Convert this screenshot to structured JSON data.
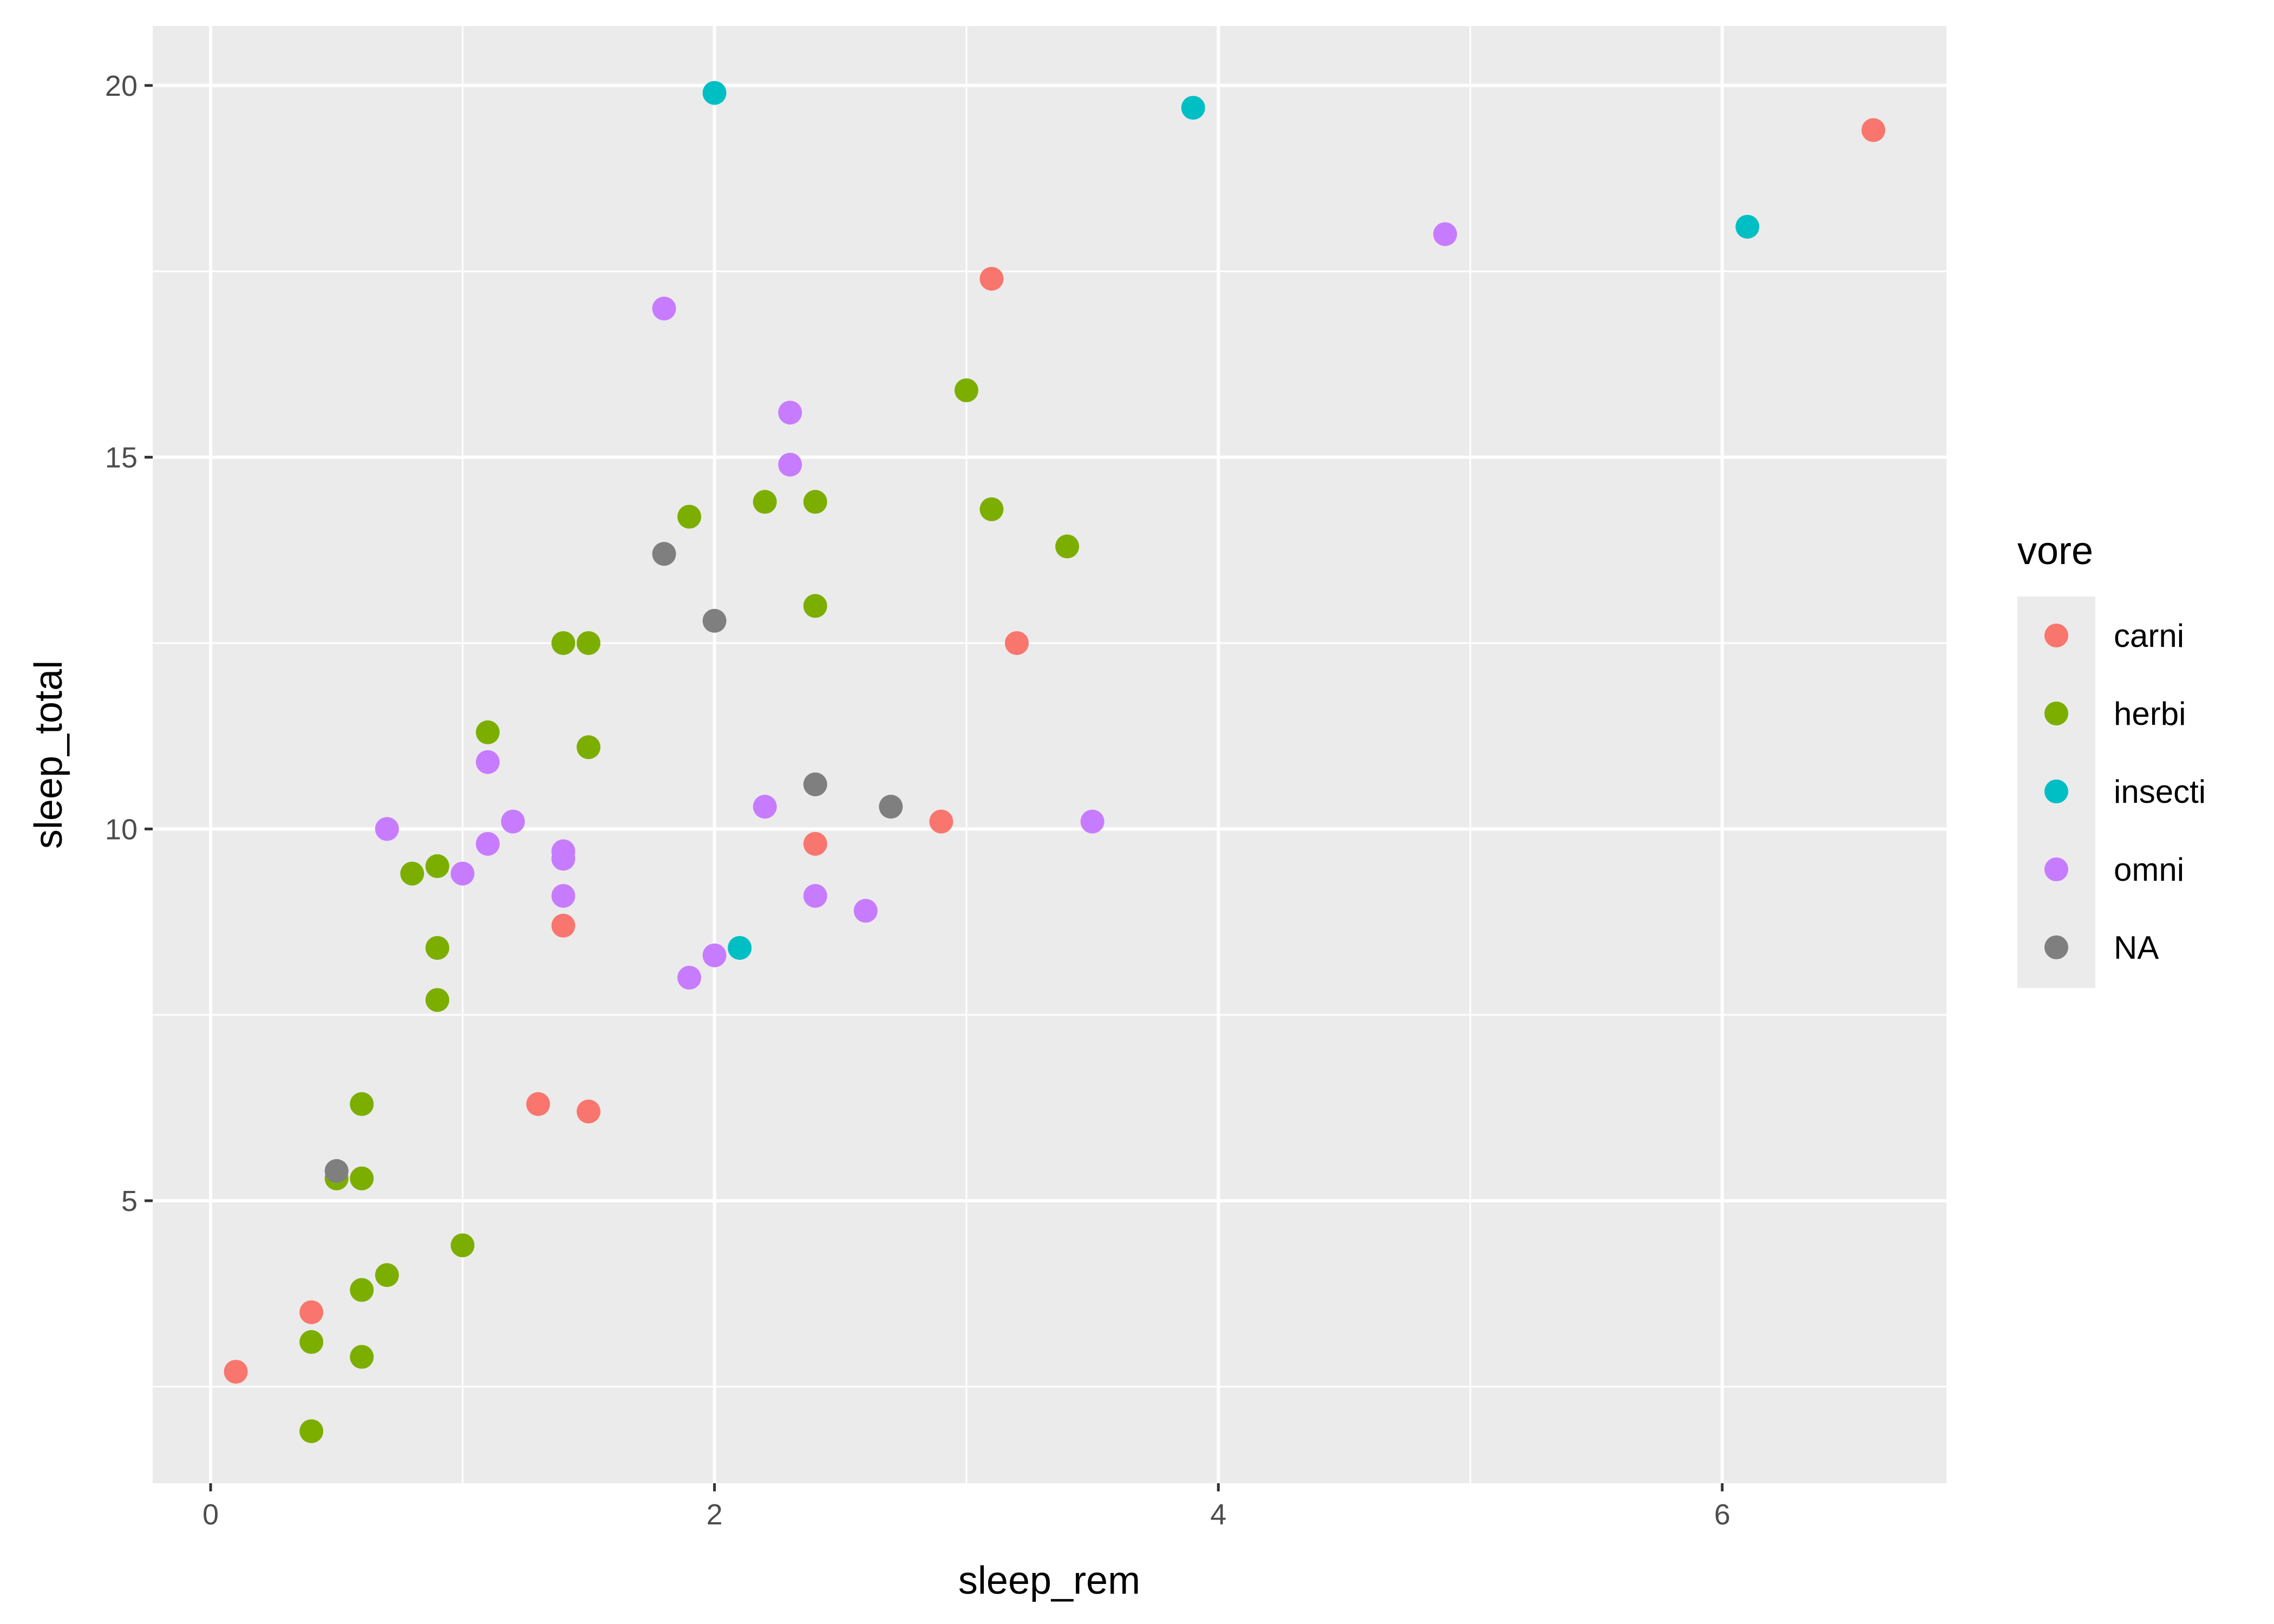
{
  "chart_data": {
    "type": "scatter",
    "xlabel": "sleep_rem",
    "ylabel": "sleep_total",
    "xlim": [
      -0.23,
      6.89
    ],
    "ylim": [
      1.2,
      20.8
    ],
    "x_ticks": [
      0,
      2,
      4,
      6
    ],
    "y_ticks": [
      5,
      10,
      15,
      20
    ],
    "x_tick_labels": [
      "0",
      "2",
      "4",
      "6"
    ],
    "y_tick_labels": [
      "5",
      "10",
      "15",
      "20"
    ],
    "grid": true,
    "legend": {
      "title": "vore",
      "position": "right",
      "entries": [
        "carni",
        "herbi",
        "insecti",
        "omni",
        "NA"
      ]
    },
    "colors": {
      "panel_background": "#EBEBEB",
      "grid": "#FFFFFF",
      "carni": "#F8766D",
      "herbi": "#7CAE00",
      "insecti": "#00BFC4",
      "omni": "#C77CFF",
      "NA": "#7F7F7F"
    },
    "series": [
      {
        "name": "carni",
        "points": [
          [
            0.1,
            2.7
          ],
          [
            0.4,
            3.5
          ],
          [
            1.3,
            6.3
          ],
          [
            1.4,
            8.7
          ],
          [
            1.5,
            6.2
          ],
          [
            2.4,
            9.8
          ],
          [
            2.9,
            10.1
          ],
          [
            3.1,
            17.4
          ],
          [
            3.2,
            12.5
          ],
          [
            6.6,
            19.4
          ]
        ]
      },
      {
        "name": "herbi",
        "points": [
          [
            0.4,
            1.9
          ],
          [
            0.4,
            3.1
          ],
          [
            0.5,
            5.3
          ],
          [
            0.6,
            2.9
          ],
          [
            0.6,
            3.8
          ],
          [
            0.6,
            5.3
          ],
          [
            0.6,
            6.3
          ],
          [
            0.7,
            4.0
          ],
          [
            0.8,
            9.4
          ],
          [
            0.9,
            7.7
          ],
          [
            0.9,
            8.4
          ],
          [
            0.9,
            9.5
          ],
          [
            1.0,
            4.4
          ],
          [
            1.1,
            11.3
          ],
          [
            1.4,
            12.5
          ],
          [
            1.5,
            12.5
          ],
          [
            1.5,
            11.1
          ],
          [
            1.9,
            14.2
          ],
          [
            2.2,
            14.4
          ],
          [
            2.4,
            14.4
          ],
          [
            2.4,
            13.0
          ],
          [
            3.0,
            15.9
          ],
          [
            3.1,
            14.3
          ],
          [
            3.4,
            13.8
          ]
        ]
      },
      {
        "name": "insecti",
        "points": [
          [
            2.0,
            19.9
          ],
          [
            2.1,
            8.4
          ],
          [
            3.9,
            19.7
          ],
          [
            6.1,
            18.1
          ]
        ]
      },
      {
        "name": "omni",
        "points": [
          [
            0.7,
            10.0
          ],
          [
            1.0,
            9.4
          ],
          [
            1.1,
            10.9
          ],
          [
            1.1,
            9.8
          ],
          [
            1.2,
            10.1
          ],
          [
            1.4,
            9.7
          ],
          [
            1.4,
            9.6
          ],
          [
            1.4,
            9.1
          ],
          [
            1.8,
            17.0
          ],
          [
            1.9,
            8.0
          ],
          [
            2.0,
            8.3
          ],
          [
            2.2,
            10.3
          ],
          [
            2.3,
            15.6
          ],
          [
            2.3,
            14.9
          ],
          [
            2.4,
            9.1
          ],
          [
            2.6,
            8.9
          ],
          [
            3.5,
            10.1
          ],
          [
            4.9,
            18.0
          ]
        ]
      },
      {
        "name": "NA",
        "points": [
          [
            0.5,
            5.4
          ],
          [
            1.8,
            13.7
          ],
          [
            2.0,
            12.8
          ],
          [
            2.4,
            10.6
          ],
          [
            2.7,
            10.3
          ]
        ]
      }
    ]
  }
}
